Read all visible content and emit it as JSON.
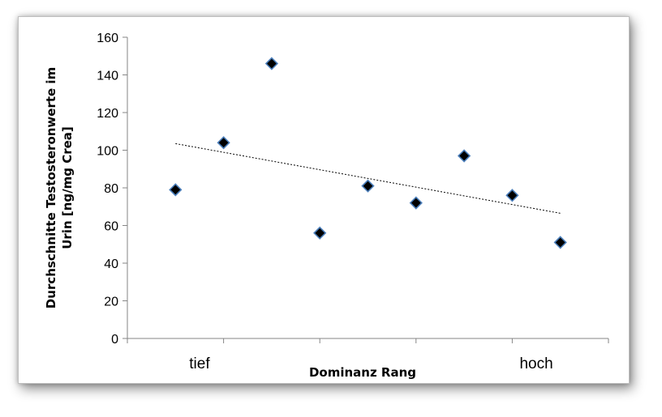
{
  "chart_data": {
    "type": "scatter",
    "title": "",
    "xlabel": "Dominanz Rang",
    "ylabel": [
      "Durchschnitte Testosteronwerte im",
      "Urin [ng/mg Crea]"
    ],
    "x_tick_labels": [
      {
        "label": "tief",
        "x": 1.5
      },
      {
        "label": "hoch",
        "x": 8.5
      }
    ],
    "xlim": [
      0,
      10
    ],
    "ylim": [
      0,
      160
    ],
    "y_ticks": [
      0,
      20,
      40,
      60,
      80,
      100,
      120,
      140,
      160
    ],
    "points": [
      {
        "x": 1,
        "y": 79
      },
      {
        "x": 2,
        "y": 104
      },
      {
        "x": 3,
        "y": 146
      },
      {
        "x": 4,
        "y": 56
      },
      {
        "x": 5,
        "y": 81
      },
      {
        "x": 6,
        "y": 72
      },
      {
        "x": 7,
        "y": 97
      },
      {
        "x": 8,
        "y": 76
      },
      {
        "x": 9,
        "y": 51
      }
    ],
    "trendline": {
      "type": "linear",
      "style": "dotted",
      "x": [
        1,
        9
      ],
      "y": [
        103.5,
        66.5
      ]
    },
    "grid": false,
    "legend": "none",
    "marker": {
      "shape": "diamond",
      "fill": "#000000",
      "edge": "#4a7ebb"
    }
  }
}
